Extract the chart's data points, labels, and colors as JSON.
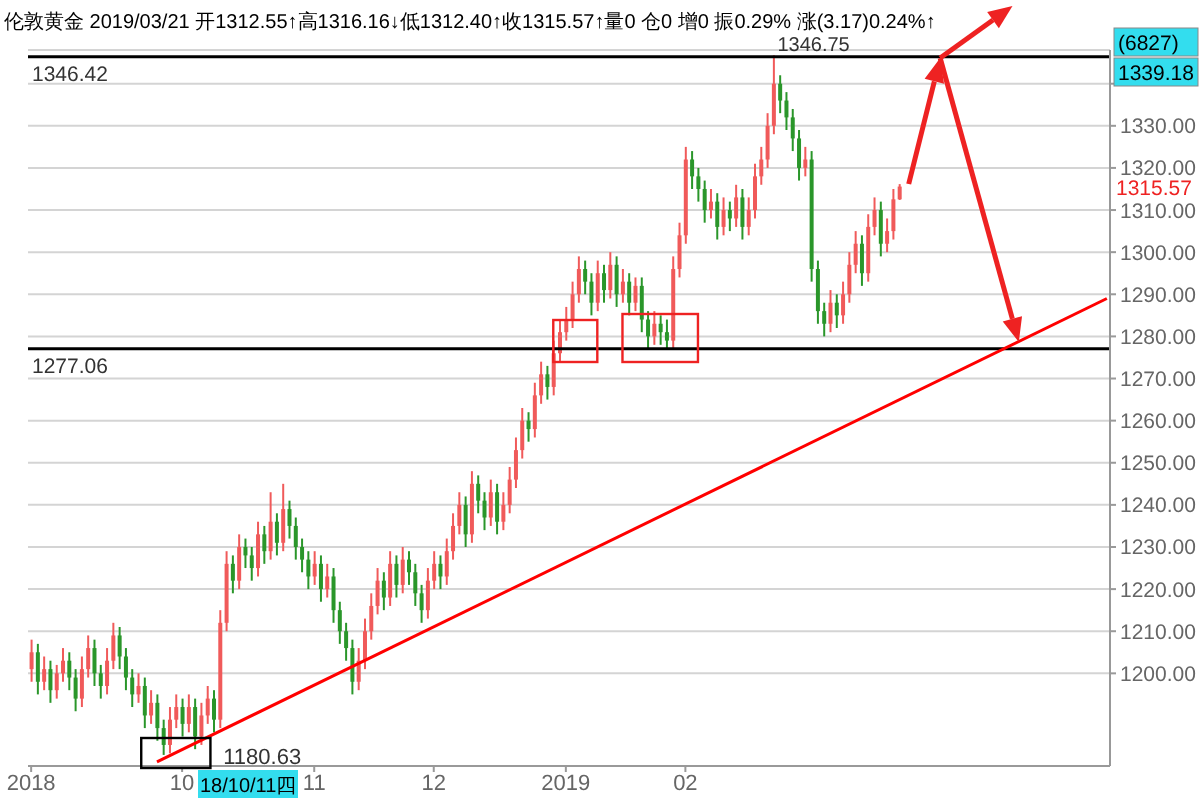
{
  "chart_data": {
    "type": "candlestick",
    "title": "伦敦黄金 2019/03/21 开1312.55↑高1316.16↓低1312.40↑收1315.57↑量0 仓0 增0 振0.29% 涨(3.17)0.24%↑",
    "categories": [
      "2018",
      null,
      null,
      null,
      null,
      null,
      null,
      null,
      null,
      null,
      null,
      null,
      null,
      null,
      null,
      null,
      null,
      null,
      null,
      null,
      null,
      null,
      null,
      null,
      "10",
      null,
      null,
      null,
      null,
      null,
      null,
      null,
      null,
      null,
      null,
      null,
      null,
      null,
      null,
      null,
      null,
      null,
      null,
      null,
      null,
      "11",
      null,
      null,
      null,
      null,
      null,
      null,
      null,
      null,
      null,
      null,
      null,
      null,
      null,
      null,
      null,
      null,
      null,
      null,
      "12",
      null,
      null,
      null,
      null,
      null,
      null,
      null,
      null,
      null,
      null,
      null,
      null,
      null,
      null,
      null,
      null,
      null,
      null,
      null,
      null,
      "2019",
      null,
      null,
      null,
      null,
      null,
      null,
      null,
      null,
      null,
      null,
      null,
      null,
      null,
      null,
      null,
      null,
      null,
      null,
      "02",
      null,
      null,
      null,
      null,
      null,
      null,
      null,
      null,
      null,
      null,
      null,
      null,
      null,
      null,
      null,
      null,
      null,
      null,
      null,
      null,
      null,
      null,
      null,
      null,
      null,
      null,
      null,
      null,
      null,
      null,
      null,
      null,
      null,
      null,
      null,
      null,
      null,
      null,
      null,
      null,
      null,
      null,
      null,
      null,
      null,
      null,
      null,
      null,
      null,
      null,
      null,
      null,
      null,
      null,
      null,
      null,
      null,
      null,
      null,
      null,
      null,
      null,
      null,
      null,
      null,
      null,
      null
    ],
    "ohlc": [
      [
        1201,
        1208,
        1198,
        1205
      ],
      [
        1205,
        1207,
        1195,
        1198
      ],
      [
        1198,
        1204,
        1196,
        1201
      ],
      [
        1201,
        1203,
        1193,
        1196
      ],
      [
        1196,
        1202,
        1194,
        1200
      ],
      [
        1200,
        1206,
        1198,
        1203
      ],
      [
        1203,
        1205,
        1196,
        1199
      ],
      [
        1199,
        1201,
        1191,
        1194
      ],
      [
        1194,
        1204,
        1192,
        1201
      ],
      [
        1201,
        1209,
        1199,
        1206
      ],
      [
        1206,
        1208,
        1197,
        1200
      ],
      [
        1200,
        1202,
        1194,
        1197
      ],
      [
        1197,
        1206,
        1195,
        1203
      ],
      [
        1203,
        1212,
        1201,
        1209
      ],
      [
        1209,
        1211,
        1201,
        1204
      ],
      [
        1204,
        1206,
        1196,
        1199
      ],
      [
        1199,
        1201,
        1192,
        1195
      ],
      [
        1195,
        1200,
        1193,
        1197
      ],
      [
        1197,
        1199,
        1187,
        1190
      ],
      [
        1190,
        1196,
        1188,
        1193
      ],
      [
        1193,
        1195,
        1184,
        1187
      ],
      [
        1187,
        1189,
        1180.63,
        1183
      ],
      [
        1183,
        1192,
        1181,
        1189
      ],
      [
        1189,
        1195,
        1187,
        1192
      ],
      [
        1192,
        1194,
        1185,
        1188
      ],
      [
        1188,
        1195,
        1186,
        1192
      ],
      [
        1192,
        1194,
        1182,
        1185
      ],
      [
        1185,
        1193,
        1183,
        1190
      ],
      [
        1190,
        1197,
        1188,
        1194
      ],
      [
        1194,
        1196,
        1186,
        1189
      ],
      [
        1189,
        1215,
        1187,
        1212
      ],
      [
        1212,
        1229,
        1210,
        1226
      ],
      [
        1226,
        1228,
        1219,
        1222
      ],
      [
        1222,
        1233,
        1220,
        1230
      ],
      [
        1230,
        1232,
        1225,
        1228
      ],
      [
        1228,
        1230,
        1222,
        1225
      ],
      [
        1225,
        1236,
        1223,
        1233
      ],
      [
        1233,
        1235,
        1226,
        1229
      ],
      [
        1229,
        1243,
        1227,
        1236
      ],
      [
        1236,
        1238,
        1228,
        1231
      ],
      [
        1231,
        1245,
        1229,
        1239
      ],
      [
        1239,
        1241,
        1232,
        1235
      ],
      [
        1235,
        1237,
        1227,
        1230
      ],
      [
        1230,
        1232,
        1224,
        1227
      ],
      [
        1227,
        1229,
        1220,
        1223
      ],
      [
        1223,
        1229,
        1221,
        1226
      ],
      [
        1226,
        1228,
        1217,
        1220
      ],
      [
        1220,
        1226,
        1218,
        1223
      ],
      [
        1223,
        1225,
        1212,
        1215
      ],
      [
        1215,
        1217,
        1207,
        1210
      ],
      [
        1210,
        1212,
        1203,
        1206
      ],
      [
        1206,
        1208,
        1195,
        1198
      ],
      [
        1198,
        1206,
        1196,
        1203
      ],
      [
        1203,
        1213,
        1201,
        1210
      ],
      [
        1210,
        1219,
        1208,
        1216
      ],
      [
        1216,
        1225,
        1214,
        1222
      ],
      [
        1222,
        1224,
        1215,
        1218
      ],
      [
        1218,
        1229,
        1216,
        1226
      ],
      [
        1226,
        1228,
        1218,
        1221
      ],
      [
        1221,
        1230,
        1219,
        1227
      ],
      [
        1227,
        1229,
        1221,
        1224
      ],
      [
        1224,
        1226,
        1216,
        1219
      ],
      [
        1219,
        1221,
        1212,
        1215
      ],
      [
        1215,
        1225,
        1213,
        1222
      ],
      [
        1222,
        1229,
        1220,
        1226
      ],
      [
        1226,
        1228,
        1220,
        1223
      ],
      [
        1223,
        1232,
        1221,
        1229
      ],
      [
        1229,
        1238,
        1227,
        1235
      ],
      [
        1235,
        1243,
        1233,
        1240
      ],
      [
        1240,
        1242,
        1230,
        1233
      ],
      [
        1233,
        1248,
        1231,
        1245
      ],
      [
        1245,
        1247,
        1238,
        1241
      ],
      [
        1241,
        1243,
        1234,
        1237
      ],
      [
        1237,
        1246,
        1235,
        1243
      ],
      [
        1243,
        1245,
        1233,
        1236
      ],
      [
        1236,
        1243,
        1234,
        1240
      ],
      [
        1240,
        1249,
        1238,
        1246
      ],
      [
        1246,
        1256,
        1244,
        1253
      ],
      [
        1253,
        1263,
        1251,
        1260
      ],
      [
        1260,
        1262,
        1255,
        1258
      ],
      [
        1258,
        1269,
        1256,
        1266
      ],
      [
        1266,
        1274,
        1264,
        1271
      ],
      [
        1271,
        1273,
        1265,
        1268
      ],
      [
        1268,
        1279,
        1266,
        1276
      ],
      [
        1276,
        1284,
        1274,
        1281
      ],
      [
        1281,
        1287,
        1279,
        1284
      ],
      [
        1284,
        1293,
        1282,
        1290
      ],
      [
        1290,
        1299,
        1288,
        1296
      ],
      [
        1296,
        1298,
        1290,
        1293
      ],
      [
        1293,
        1295,
        1285,
        1288
      ],
      [
        1288,
        1298,
        1286,
        1295
      ],
      [
        1295,
        1297,
        1288,
        1291
      ],
      [
        1291,
        1300,
        1289,
        1297
      ],
      [
        1297,
        1299,
        1287,
        1290
      ],
      [
        1290,
        1296,
        1288,
        1293
      ],
      [
        1293,
        1295,
        1285,
        1288
      ],
      [
        1288,
        1294,
        1286,
        1292
      ],
      [
        1292,
        1294,
        1281,
        1284
      ],
      [
        1284,
        1286,
        1277,
        1280
      ],
      [
        1280,
        1286,
        1278,
        1283
      ],
      [
        1283,
        1285,
        1278,
        1281
      ],
      [
        1281,
        1284,
        1277,
        1279
      ],
      [
        1279,
        1299,
        1277,
        1296
      ],
      [
        1296,
        1307,
        1294,
        1304
      ],
      [
        1304,
        1325,
        1302,
        1322
      ],
      [
        1322,
        1324,
        1315,
        1318
      ],
      [
        1318,
        1320,
        1312,
        1315
      ],
      [
        1315,
        1317,
        1307,
        1310
      ],
      [
        1310,
        1315,
        1308,
        1312
      ],
      [
        1312,
        1314,
        1303,
        1306
      ],
      [
        1306,
        1313,
        1304,
        1310
      ],
      [
        1310,
        1312,
        1305,
        1308
      ],
      [
        1308,
        1316,
        1306,
        1313
      ],
      [
        1313,
        1315,
        1303,
        1306
      ],
      [
        1306,
        1313,
        1304,
        1310
      ],
      [
        1310,
        1321,
        1308,
        1318
      ],
      [
        1318,
        1325,
        1316,
        1322
      ],
      [
        1322,
        1333,
        1320,
        1330
      ],
      [
        1330,
        1346.75,
        1328,
        1340
      ],
      [
        1340,
        1342,
        1333,
        1336
      ],
      [
        1336,
        1338,
        1329,
        1332
      ],
      [
        1332,
        1334,
        1324,
        1327
      ],
      [
        1327,
        1329,
        1317,
        1320
      ],
      [
        1320,
        1325,
        1318,
        1322
      ],
      [
        1322,
        1324,
        1293,
        1296
      ],
      [
        1296,
        1298,
        1283,
        1286
      ],
      [
        1286,
        1288,
        1280,
        1283
      ],
      [
        1283,
        1291,
        1281,
        1288
      ],
      [
        1288,
        1290,
        1282,
        1285
      ],
      [
        1285,
        1293,
        1283,
        1290
      ],
      [
        1290,
        1300,
        1288,
        1297
      ],
      [
        1297,
        1305,
        1295,
        1302
      ],
      [
        1302,
        1304,
        1292,
        1295
      ],
      [
        1295,
        1309,
        1293,
        1306
      ],
      [
        1306,
        1313,
        1304,
        1310
      ],
      [
        1310,
        1312,
        1299,
        1302
      ],
      [
        1302,
        1308,
        1300,
        1305
      ],
      [
        1305,
        1315,
        1303,
        1312.55
      ],
      [
        1312.55,
        1316.16,
        1312.4,
        1315.57
      ],
      null,
      null,
      null,
      null,
      null,
      null,
      null,
      null,
      null,
      null,
      null,
      null,
      null,
      null,
      null,
      null,
      null,
      null,
      null,
      null,
      null,
      null,
      null,
      null,
      null,
      null,
      null,
      null,
      null,
      null,
      null,
      null,
      null
    ],
    "series": [
      {
        "type": "line",
        "color": "#ff0000",
        "values": [
          null,
          null,
          null,
          null,
          null,
          null,
          null,
          null,
          null,
          null,
          null,
          null,
          null,
          null,
          null,
          null,
          null,
          null,
          null,
          null,
          1179,
          null,
          null,
          null,
          null,
          null,
          null,
          null,
          null,
          null,
          null,
          null,
          null,
          null,
          null,
          null,
          null,
          null,
          null,
          null,
          null,
          null,
          null,
          null,
          null,
          null,
          null,
          null,
          null,
          null,
          null,
          null,
          null,
          null,
          null,
          null,
          null,
          null,
          null,
          null,
          null,
          null,
          null,
          null,
          null,
          null,
          null,
          null,
          null,
          null,
          null,
          null,
          null,
          null,
          null,
          null,
          null,
          null,
          null,
          null,
          null,
          null,
          null,
          null,
          null,
          null,
          null,
          null,
          null,
          null,
          null,
          null,
          null,
          null,
          null,
          null,
          null,
          null,
          null,
          null,
          null,
          null,
          null,
          null,
          null,
          null,
          null,
          null,
          null,
          null,
          null,
          null,
          null,
          null,
          null,
          null,
          null,
          null,
          null,
          null,
          null,
          null,
          null,
          null,
          null,
          null,
          null,
          null,
          null,
          null,
          null,
          null,
          null,
          null,
          null,
          null,
          null,
          null,
          null,
          null,
          null,
          null,
          null,
          null,
          null,
          null,
          null,
          null,
          null,
          null,
          null,
          null,
          null,
          null,
          null,
          null,
          null,
          null,
          null,
          null,
          null,
          null,
          null,
          null,
          null,
          null,
          null,
          null,
          null,
          null,
          null,
          1289
        ]
      }
    ],
    "ylim": [
      1178,
      1348
    ],
    "yticks": [
      {
        "value": 1200,
        "label": "1200.00"
      },
      {
        "value": 1210,
        "label": "1210.00"
      },
      {
        "value": 1220,
        "label": "1220.00"
      },
      {
        "value": 1230,
        "label": "1230.00"
      },
      {
        "value": 1240,
        "label": "1240.00"
      },
      {
        "value": 1250,
        "label": "1250.00"
      },
      {
        "value": 1260,
        "label": "1260.00"
      },
      {
        "value": 1270,
        "label": "1270.00"
      },
      {
        "value": 1280,
        "label": "1280.00"
      },
      {
        "value": 1290,
        "label": "1290.00"
      },
      {
        "value": 1300,
        "label": "1300.00"
      },
      {
        "value": 1310,
        "label": "1310.00"
      },
      {
        "value": 1320,
        "label": "1320.00"
      },
      {
        "value": 1330,
        "label": "1330.00"
      },
      {
        "value": 1340,
        "label": null
      }
    ],
    "grid": "y",
    "ref_lines": [
      {
        "axis": "y",
        "value": 1346.42,
        "label": "1346.42",
        "color": "#000000"
      },
      {
        "axis": "y",
        "value": 1277.06,
        "label": "1277.06",
        "color": "#000000"
      }
    ],
    "annotations": [
      {
        "text": "1346.75",
        "y": 1346.75
      },
      "1180.63",
      "1315.57",
      "1339.18",
      "(6827)",
      "18/10/11四"
    ]
  }
}
